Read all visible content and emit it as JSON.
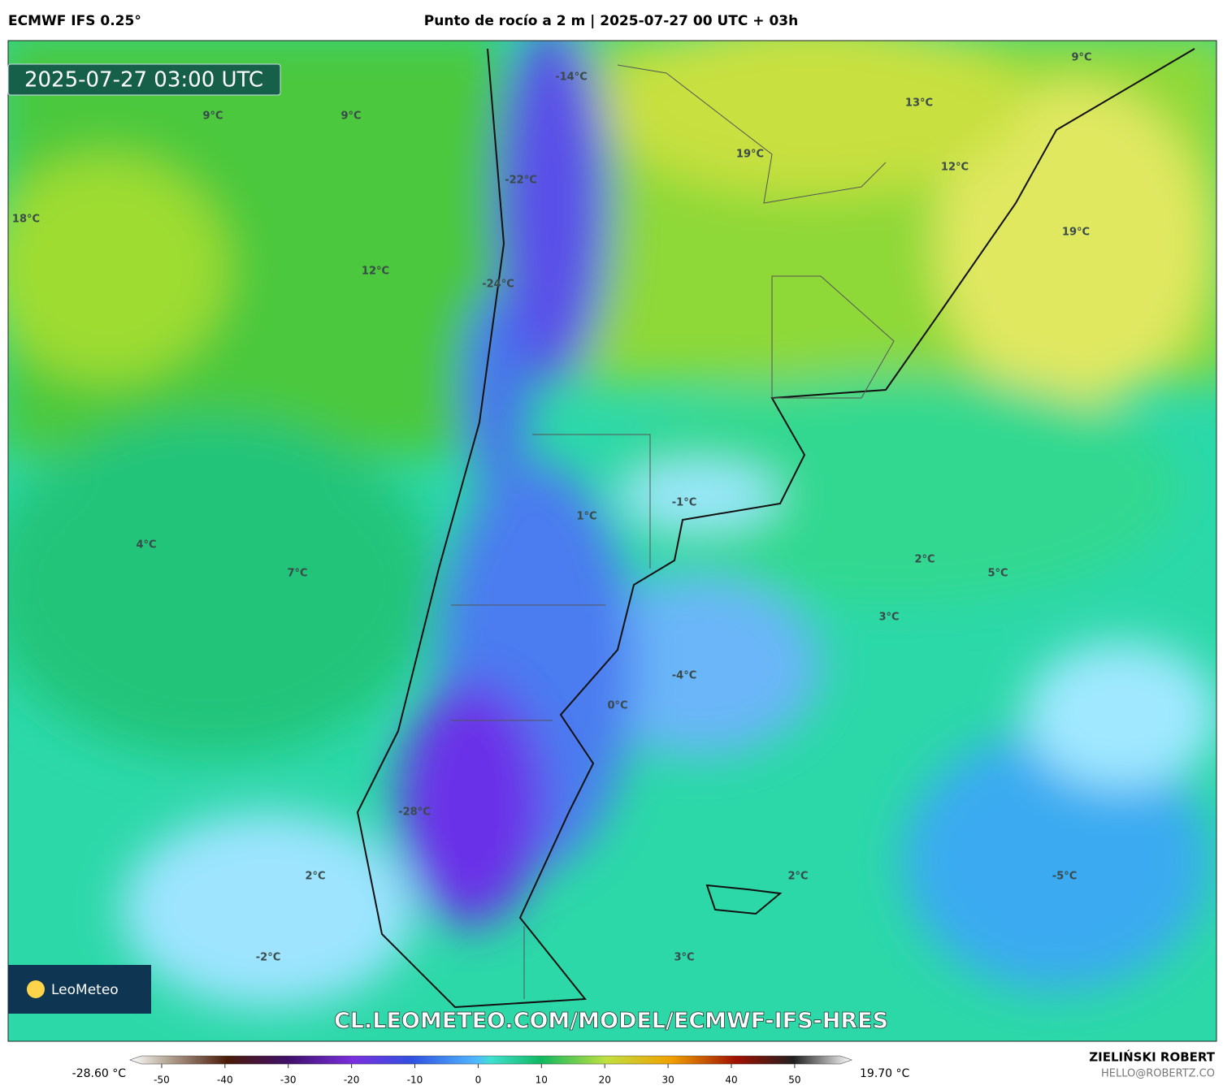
{
  "header": {
    "model": "ECMWF IFS 0.25°",
    "title": "Punto de rocío a 2 m | 2025-07-27 00 UTC + 03h"
  },
  "timestamp": "2025-07-27 03:00 UTC",
  "map_labels": [
    "-14°C",
    "9°C",
    "9°C",
    "13°C",
    "9°C",
    "19°C",
    "12°C",
    "-22°C",
    "18°C",
    "19°C",
    "12°C",
    "-24°C",
    "-1°C",
    "1°C",
    "4°C",
    "2°C",
    "7°C",
    "5°C",
    "3°C",
    "-4°C",
    "0°C",
    "-28°C",
    "2°C",
    "2°C",
    "-5°C",
    "-2°C",
    "3°C"
  ],
  "watermark": "CL.LEOMETEO.COM/MODEL/ECMWF-IFS-HRES",
  "logo": "LeoMeteo",
  "colorbar": {
    "min_label": "-28.60 °C",
    "max_label": "19.70 °C",
    "xlim": [
      -55,
      59
    ],
    "xticks": [
      -50,
      -40,
      -30,
      -20,
      -10,
      0,
      10,
      20,
      30,
      40,
      50
    ]
  },
  "credit": {
    "name": "ZIELIŃSKI ROBERT",
    "email": "HELLO@ROBERTZ.CO"
  }
}
